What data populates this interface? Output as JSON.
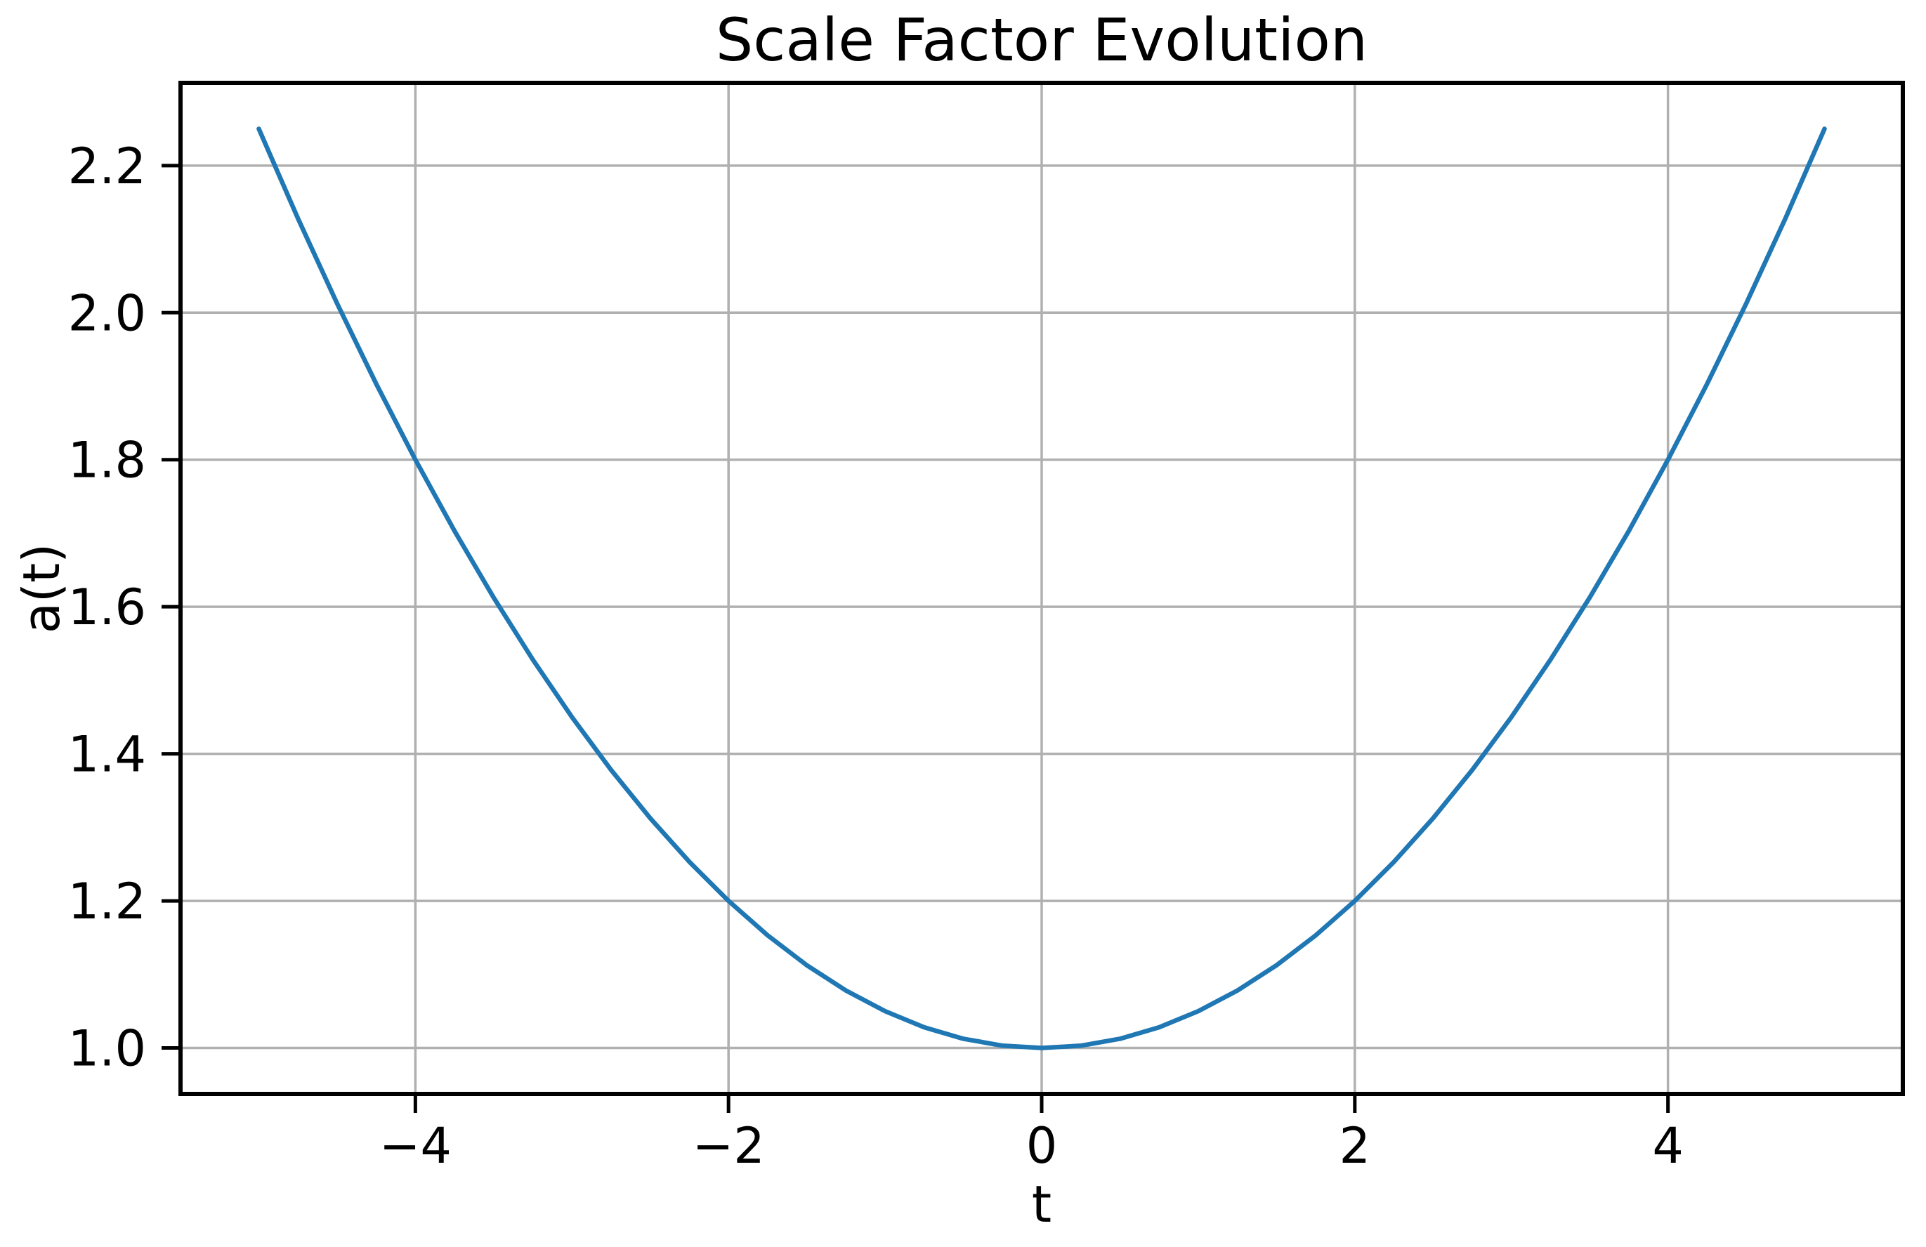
{
  "chart_data": {
    "type": "line",
    "title": "Scale Factor Evolution",
    "xlabel": "t",
    "ylabel": "a(t)",
    "xlim": [
      -5.5,
      5.5
    ],
    "ylim": [
      0.9375,
      2.3125
    ],
    "grid": true,
    "legend": "none",
    "colors": {
      "line": "#1f77b4",
      "grid": "#b0b0b0",
      "spine": "#000000",
      "text": "#000000",
      "background": "#ffffff"
    },
    "x_ticks": {
      "values": [
        -4,
        -2,
        0,
        2,
        4
      ],
      "labels": [
        "−4",
        "−2",
        "0",
        "2",
        "4"
      ]
    },
    "y_ticks": {
      "values": [
        1.0,
        1.2,
        1.4,
        1.6,
        1.8,
        2.0,
        2.2
      ],
      "labels": [
        "1.0",
        "1.2",
        "1.4",
        "1.6",
        "1.8",
        "2.0",
        "2.2"
      ]
    },
    "series": [
      {
        "points": [
          [
            -5.0,
            2.25
          ],
          [
            -4.75,
            2.128125
          ],
          [
            -4.5,
            2.0125
          ],
          [
            -4.25,
            1.903125
          ],
          [
            -4.0,
            1.8
          ],
          [
            -3.75,
            1.703125
          ],
          [
            -3.5,
            1.6125
          ],
          [
            -3.25,
            1.528125
          ],
          [
            -3.0,
            1.45
          ],
          [
            -2.75,
            1.378125
          ],
          [
            -2.5,
            1.3125
          ],
          [
            -2.25,
            1.253125
          ],
          [
            -2.0,
            1.2
          ],
          [
            -1.75,
            1.153125
          ],
          [
            -1.5,
            1.1125
          ],
          [
            -1.25,
            1.078125
          ],
          [
            -1.0,
            1.05
          ],
          [
            -0.75,
            1.028125
          ],
          [
            -0.5,
            1.0125
          ],
          [
            -0.25,
            1.003125
          ],
          [
            0.0,
            1.0
          ],
          [
            0.25,
            1.003125
          ],
          [
            0.5,
            1.0125
          ],
          [
            0.75,
            1.028125
          ],
          [
            1.0,
            1.05
          ],
          [
            1.25,
            1.078125
          ],
          [
            1.5,
            1.1125
          ],
          [
            1.75,
            1.153125
          ],
          [
            2.0,
            1.2
          ],
          [
            2.25,
            1.253125
          ],
          [
            2.5,
            1.3125
          ],
          [
            2.75,
            1.378125
          ],
          [
            3.0,
            1.45
          ],
          [
            3.25,
            1.528125
          ],
          [
            3.5,
            1.6125
          ],
          [
            3.75,
            1.703125
          ],
          [
            4.0,
            1.8
          ],
          [
            4.25,
            1.903125
          ],
          [
            4.5,
            2.0125
          ],
          [
            4.75,
            2.128125
          ],
          [
            5.0,
            2.25
          ]
        ]
      }
    ]
  }
}
